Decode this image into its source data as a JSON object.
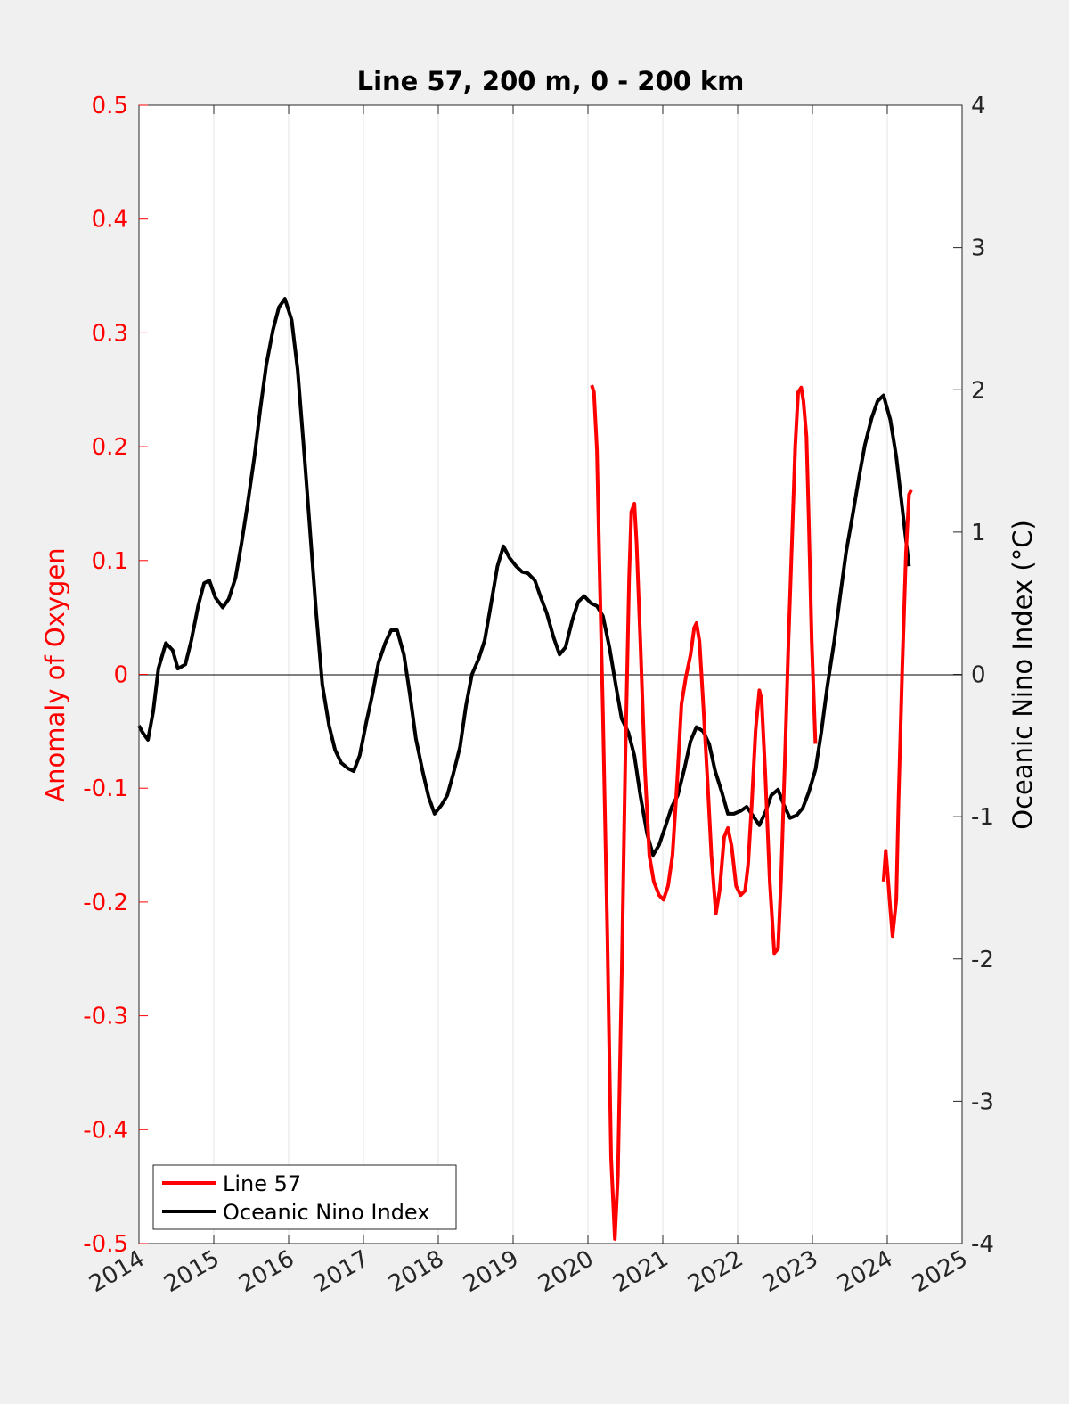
{
  "chart_data": {
    "type": "line",
    "title": "Line 57, 200 m, 0 - 200 km",
    "xlabel": "",
    "ylabel_left": "Anomaly of Oxygen",
    "ylabel_right": "Oceanic Nino Index (°C)",
    "xlim": [
      2014,
      2025
    ],
    "ylim_left": [
      -0.5,
      0.5
    ],
    "ylim_right": [
      -4,
      4
    ],
    "x_ticks": [
      "2014",
      "2015",
      "2016",
      "2017",
      "2018",
      "2019",
      "2020",
      "2021",
      "2022",
      "2023",
      "2024",
      "2025"
    ],
    "y_left_ticks": [
      "0.5",
      "0.4",
      "0.3",
      "0.2",
      "0.1",
      "0",
      "-0.1",
      "-0.2",
      "-0.3",
      "-0.4",
      "-0.5"
    ],
    "y_right_ticks": [
      "4",
      "3",
      "2",
      "1",
      "0",
      "-1",
      "-2",
      "-3",
      "-4"
    ],
    "grid": "vertical at x ticks",
    "legend_placement": "bottom-left",
    "colors": {
      "line57": "#ff0000",
      "oni": "#000000",
      "left_axis": "#ff0000",
      "right_axis": "#000000"
    },
    "series": [
      {
        "name": "Line 57",
        "axis": "left",
        "x": [
          2020.05,
          2020.08,
          2020.12,
          2020.15,
          2020.2,
          2020.26,
          2020.31,
          2020.36,
          2020.4,
          2020.45,
          2020.5,
          2020.55,
          2020.58,
          2020.62,
          2020.65,
          2020.7,
          2020.76,
          2020.82,
          2020.88,
          2020.95,
          2021.01,
          2021.07,
          2021.13,
          2021.19,
          2021.25,
          2021.31,
          2021.37,
          2021.42,
          2021.45,
          2021.49,
          2021.54,
          2021.6,
          2021.65,
          2021.71,
          2021.76,
          2021.82,
          2021.87,
          2021.92,
          2021.98,
          2022.04,
          2022.1,
          2022.14,
          2022.19,
          2022.24,
          2022.29,
          2022.32,
          2022.37,
          2022.43,
          2022.49,
          2022.54,
          2022.58,
          2022.63,
          2022.68,
          2022.73,
          2022.77,
          2022.81,
          2022.85,
          2022.88,
          2022.92,
          2022.95,
          2022.99,
          2023.04,
          2023.5,
          2023.95,
          2023.98,
          2024.0,
          2024.04,
          2024.07,
          2024.12,
          2024.15,
          2024.2,
          2024.25,
          2024.29,
          2024.32
        ],
        "y": [
          0.254,
          0.248,
          0.197,
          0.107,
          -0.034,
          -0.23,
          -0.425,
          -0.496,
          -0.441,
          -0.269,
          -0.073,
          0.084,
          0.143,
          0.15,
          0.115,
          0.029,
          -0.081,
          -0.159,
          -0.182,
          -0.194,
          -0.198,
          -0.186,
          -0.159,
          -0.096,
          -0.026,
          -0.002,
          0.017,
          0.041,
          0.045,
          0.029,
          -0.026,
          -0.096,
          -0.159,
          -0.21,
          -0.19,
          -0.143,
          -0.135,
          -0.151,
          -0.186,
          -0.194,
          -0.19,
          -0.167,
          -0.112,
          -0.049,
          -0.014,
          -0.022,
          -0.088,
          -0.182,
          -0.245,
          -0.241,
          -0.182,
          -0.08,
          0.029,
          0.123,
          0.201,
          0.248,
          0.252,
          0.24,
          0.209,
          0.138,
          0.029,
          -0.061,
          null,
          -0.182,
          -0.155,
          -0.171,
          -0.206,
          -0.23,
          -0.198,
          -0.112,
          0.005,
          0.107,
          0.158,
          0.162
        ]
      },
      {
        "name": "Oceanic Nino Index",
        "axis": "right",
        "x": [
          2014.0,
          2014.05,
          2014.12,
          2014.19,
          2014.26,
          2014.36,
          2014.45,
          2014.52,
          2014.62,
          2014.7,
          2014.79,
          2014.87,
          2014.94,
          2015.02,
          2015.12,
          2015.2,
          2015.29,
          2015.37,
          2015.45,
          2015.54,
          2015.62,
          2015.7,
          2015.79,
          2015.87,
          2015.95,
          2016.04,
          2016.12,
          2016.2,
          2016.29,
          2016.37,
          2016.45,
          2016.54,
          2016.62,
          2016.7,
          2016.79,
          2016.87,
          2016.95,
          2017.04,
          2017.12,
          2017.2,
          2017.29,
          2017.37,
          2017.45,
          2017.54,
          2017.62,
          2017.7,
          2017.79,
          2017.87,
          2017.95,
          2018.04,
          2018.12,
          2018.2,
          2018.29,
          2018.37,
          2018.45,
          2018.54,
          2018.62,
          2018.7,
          2018.79,
          2018.87,
          2018.95,
          2019.04,
          2019.12,
          2019.2,
          2019.29,
          2019.37,
          2019.45,
          2019.54,
          2019.62,
          2019.7,
          2019.79,
          2019.87,
          2019.95,
          2020.04,
          2020.12,
          2020.2,
          2020.29,
          2020.37,
          2020.45,
          2020.54,
          2020.62,
          2020.7,
          2020.79,
          2020.87,
          2020.95,
          2021.04,
          2021.12,
          2021.2,
          2021.29,
          2021.37,
          2021.45,
          2021.54,
          2021.62,
          2021.7,
          2021.79,
          2021.87,
          2021.95,
          2022.04,
          2022.12,
          2022.2,
          2022.29,
          2022.37,
          2022.45,
          2022.54,
          2022.62,
          2022.7,
          2022.79,
          2022.87,
          2022.95,
          2023.04,
          2023.12,
          2023.2,
          2023.29,
          2023.37,
          2023.45,
          2023.54,
          2023.62,
          2023.7,
          2023.79,
          2023.87,
          2023.95,
          2024.04,
          2024.12,
          2024.2,
          2024.29
        ],
        "y": [
          -0.36,
          -0.41,
          -0.46,
          -0.26,
          0.04,
          0.22,
          0.17,
          0.04,
          0.07,
          0.24,
          0.48,
          0.64,
          0.66,
          0.54,
          0.47,
          0.53,
          0.68,
          0.92,
          1.19,
          1.52,
          1.86,
          2.17,
          2.42,
          2.58,
          2.64,
          2.49,
          2.14,
          1.61,
          0.98,
          0.42,
          -0.07,
          -0.36,
          -0.53,
          -0.62,
          -0.66,
          -0.68,
          -0.57,
          -0.33,
          -0.14,
          0.08,
          0.22,
          0.31,
          0.31,
          0.14,
          -0.14,
          -0.45,
          -0.68,
          -0.86,
          -0.98,
          -0.92,
          -0.85,
          -0.7,
          -0.51,
          -0.22,
          0.0,
          0.11,
          0.24,
          0.48,
          0.76,
          0.9,
          0.82,
          0.76,
          0.72,
          0.71,
          0.66,
          0.54,
          0.43,
          0.26,
          0.14,
          0.19,
          0.38,
          0.51,
          0.55,
          0.5,
          0.48,
          0.41,
          0.18,
          -0.07,
          -0.31,
          -0.41,
          -0.57,
          -0.85,
          -1.12,
          -1.27,
          -1.2,
          -1.06,
          -0.93,
          -0.85,
          -0.66,
          -0.47,
          -0.37,
          -0.4,
          -0.49,
          -0.68,
          -0.83,
          -0.98,
          -0.98,
          -0.96,
          -0.93,
          -0.99,
          -1.06,
          -0.97,
          -0.85,
          -0.81,
          -0.92,
          -1.01,
          -0.99,
          -0.94,
          -0.83,
          -0.67,
          -0.4,
          -0.08,
          0.23,
          0.55,
          0.86,
          1.13,
          1.38,
          1.61,
          1.8,
          1.92,
          1.96,
          1.79,
          1.53,
          1.17,
          0.76
        ]
      }
    ]
  }
}
